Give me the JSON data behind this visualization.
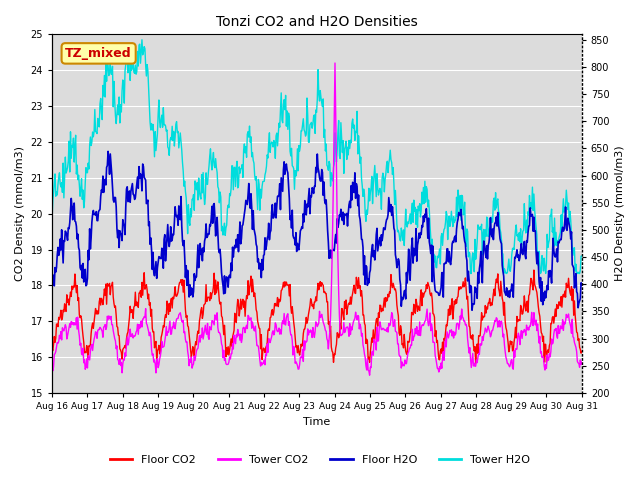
{
  "title": "Tonzi CO2 and H2O Densities",
  "xlabel": "Time",
  "ylabel_left": "CO2 Density (mmol/m3)",
  "ylabel_right": "H2O Density (mmol/m3)",
  "ylim_left": [
    15.0,
    25.0
  ],
  "ylim_right": [
    200,
    860
  ],
  "xtick_labels": [
    "Aug 16",
    "Aug 17",
    "Aug 18",
    "Aug 19",
    "Aug 20",
    "Aug 21",
    "Aug 22",
    "Aug 23",
    "Aug 24",
    "Aug 25",
    "Aug 26",
    "Aug 27",
    "Aug 28",
    "Aug 29",
    "Aug 30",
    "Aug 31"
  ],
  "bg_color": "#dcdcdc",
  "annotation_text": "TZ_mixed",
  "annotation_facecolor": "#ffffaa",
  "annotation_edgecolor": "#cc8800",
  "annotation_textcolor": "#cc0000",
  "colors": {
    "floor_co2": "#ff0000",
    "tower_co2": "#ff00ff",
    "floor_h2o": "#0000cc",
    "tower_h2o": "#00dddd"
  },
  "legend_labels": [
    "Floor CO2",
    "Tower CO2",
    "Floor H2O",
    "Tower H2O"
  ],
  "seed": 42,
  "n_points": 720,
  "figsize": [
    6.4,
    4.8
  ],
  "dpi": 100
}
